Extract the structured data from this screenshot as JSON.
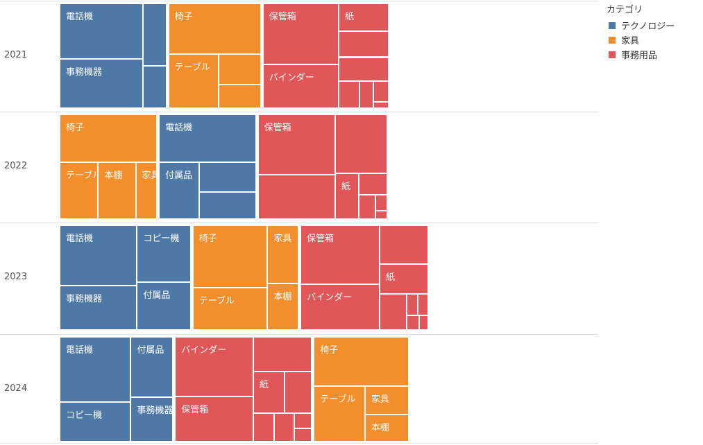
{
  "chart_data": {
    "type": "treemap",
    "row_dimension": "年",
    "legend": {
      "title": "カテゴリ",
      "placement": "top-right",
      "items": [
        {
          "label": "テクノロジー",
          "color": "#4e79a7"
        },
        {
          "label": "家具",
          "color": "#f28e2b"
        },
        {
          "label": "事務用品",
          "color": "#e15759"
        }
      ]
    },
    "colors": {
      "テクノロジー": "#4e79a7",
      "家具": "#f28e2b",
      "事務用品": "#e15759"
    },
    "rows": [
      {
        "year": "2021",
        "categories": [
          {
            "category": "テクノロジー",
            "items": [
              {
                "name": "電話機",
                "label": "電話機",
                "value": 100
              },
              {
                "name": "事務機器",
                "label": "事務機器",
                "value": 88
              },
              {
                "name": "テクノロジー-1",
                "label": "",
                "value": 31
              },
              {
                "name": "テクノロジー-2",
                "label": "",
                "value": 21
              }
            ]
          },
          {
            "category": "家具",
            "items": [
              {
                "name": "椅子",
                "label": "椅子",
                "value": 100
              },
              {
                "name": "テーブル",
                "label": "テーブル",
                "value": 59
              },
              {
                "name": "家具-1",
                "label": "",
                "value": 28
              },
              {
                "name": "家具-2",
                "label": "",
                "value": 21
              }
            ]
          },
          {
            "category": "事務用品",
            "items": [
              {
                "name": "保管箱",
                "label": "保管箱",
                "value": 100
              },
              {
                "name": "バインダー",
                "label": "バインダー",
                "value": 71
              },
              {
                "name": "紙",
                "label": "紙",
                "value": 30
              },
              {
                "name": "事務用品-1",
                "label": "",
                "value": 28
              },
              {
                "name": "事務用品-2",
                "label": "",
                "value": 26
              },
              {
                "name": "事務用品-3",
                "label": "",
                "value": 12
              },
              {
                "name": "事務用品-4",
                "label": "",
                "value": 8
              },
              {
                "name": "事務用品-5",
                "label": "",
                "value": 7
              },
              {
                "name": "事務用品-6",
                "label": "",
                "value": 2
              }
            ]
          }
        ]
      },
      {
        "year": "2022",
        "categories": [
          {
            "category": "家具",
            "items": [
              {
                "name": "椅子",
                "label": "椅子",
                "value": 100
              },
              {
                "name": "テーブル",
                "label": "テーブル",
                "value": 47
              },
              {
                "name": "本棚",
                "label": "本棚",
                "value": 46
              },
              {
                "name": "家具",
                "label": "家具",
                "value": 26
              }
            ]
          },
          {
            "category": "テクノロジー",
            "items": [
              {
                "name": "電話機",
                "label": "電話機",
                "value": 100
              },
              {
                "name": "付属品",
                "label": "付属品",
                "value": 49
              },
              {
                "name": "テクノロジー-1",
                "label": "",
                "value": 36
              },
              {
                "name": "テクノロジー-2",
                "label": "",
                "value": 33
              }
            ]
          },
          {
            "category": "事務用品",
            "items": [
              {
                "name": "保管箱",
                "label": "保管箱",
                "value": 100
              },
              {
                "name": "事務用品-1",
                "label": "",
                "value": 74
              },
              {
                "name": "事務用品-2",
                "label": "",
                "value": 66
              },
              {
                "name": "紙",
                "label": "紙",
                "value": 23
              },
              {
                "name": "事務用品-3",
                "label": "",
                "value": 13
              },
              {
                "name": "事務用品-4",
                "label": "",
                "value": 9
              },
              {
                "name": "事務用品-5",
                "label": "",
                "value": 4
              },
              {
                "name": "事務用品-6",
                "label": "",
                "value": 2
              }
            ]
          }
        ]
      },
      {
        "year": "2023",
        "categories": [
          {
            "category": "テクノロジー",
            "items": [
              {
                "name": "電話機",
                "label": "電話機",
                "value": 100
              },
              {
                "name": "事務機器",
                "label": "事務機器",
                "value": 74
              },
              {
                "name": "コピー機",
                "label": "コピー機",
                "value": 66
              },
              {
                "name": "付属品",
                "label": "付属品",
                "value": 55
              }
            ]
          },
          {
            "category": "家具",
            "items": [
              {
                "name": "椅子",
                "label": "椅子",
                "value": 100
              },
              {
                "name": "テーブル",
                "label": "テーブル",
                "value": 68
              },
              {
                "name": "家具",
                "label": "家具",
                "value": 39
              },
              {
                "name": "本棚",
                "label": "本棚",
                "value": 31
              }
            ]
          },
          {
            "category": "事務用品",
            "items": [
              {
                "name": "保管箱",
                "label": "保管箱",
                "value": 100
              },
              {
                "name": "バインダー",
                "label": "バインダー",
                "value": 78
              },
              {
                "name": "事務用品-1",
                "label": "",
                "value": 41
              },
              {
                "name": "紙",
                "label": "紙",
                "value": 31
              },
              {
                "name": "事務用品-2",
                "label": "",
                "value": 21
              },
              {
                "name": "事務用品-3",
                "label": "",
                "value": 5
              },
              {
                "name": "事務用品-4",
                "label": "",
                "value": 5
              },
              {
                "name": "事務用品-5",
                "label": "",
                "value": 4
              },
              {
                "name": "事務用品-6",
                "label": "",
                "value": 3
              }
            ]
          }
        ]
      },
      {
        "year": "2024",
        "categories": [
          {
            "category": "テクノロジー",
            "items": [
              {
                "name": "電話機",
                "label": "電話機",
                "value": 100
              },
              {
                "name": "コピー機",
                "label": "コピー機",
                "value": 60
              },
              {
                "name": "付属品",
                "label": "付属品",
                "value": 55
              },
              {
                "name": "事務機器",
                "label": "事務機器",
                "value": 40
              }
            ]
          },
          {
            "category": "事務用品",
            "items": [
              {
                "name": "バインダー",
                "label": "バインダー",
                "value": 100
              },
              {
                "name": "保管箱",
                "label": "保管箱",
                "value": 76
              },
              {
                "name": "事務用品-1",
                "label": "",
                "value": 44
              },
              {
                "name": "紙",
                "label": "紙",
                "value": 28
              },
              {
                "name": "事務用品-2",
                "label": "",
                "value": 24
              },
              {
                "name": "事務用品-3",
                "label": "",
                "value": 13
              },
              {
                "name": "事務用品-4",
                "label": "",
                "value": 12
              },
              {
                "name": "事務用品-5",
                "label": "",
                "value": 6
              },
              {
                "name": "事務用品-6",
                "label": "",
                "value": 5
              }
            ]
          },
          {
            "category": "家具",
            "items": [
              {
                "name": "椅子",
                "label": "椅子",
                "value": 100
              },
              {
                "name": "テーブル",
                "label": "テーブル",
                "value": 61
              },
              {
                "name": "家具",
                "label": "家具",
                "value": 27
              },
              {
                "name": "本棚",
                "label": "本棚",
                "value": 25
              }
            ]
          }
        ]
      }
    ]
  }
}
